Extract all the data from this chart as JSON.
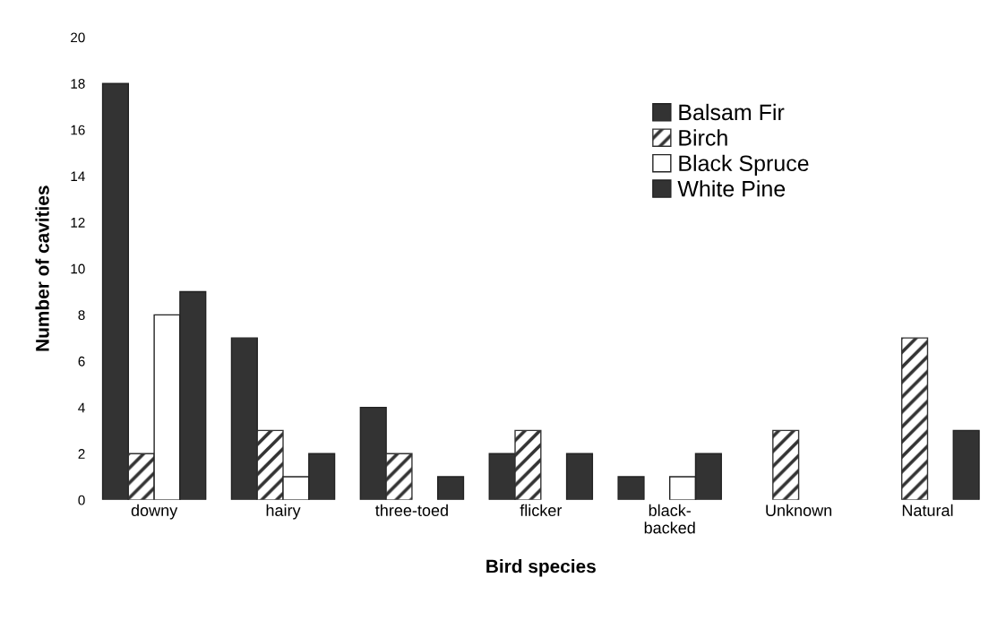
{
  "chart_data": {
    "type": "bar",
    "xlabel": "Bird species",
    "ylabel": "Number of cavities",
    "categories": [
      "downy",
      "hairy",
      "three-toed",
      "flicker",
      "black-\nbacked",
      "Unknown",
      "Natural"
    ],
    "series": [
      {
        "name": "Balsam Fir",
        "color": "#333333",
        "values": [
          18,
          7,
          4,
          2,
          1,
          0,
          0
        ]
      },
      {
        "name": "Birch",
        "color": "#333333",
        "values": [
          2,
          3,
          2,
          3,
          0,
          3,
          7
        ]
      },
      {
        "name": "Black Spruce",
        "color": "#ffffff",
        "values": [
          8,
          1,
          0,
          0,
          1,
          0,
          0
        ]
      },
      {
        "name": "White Pine",
        "color": "#333333",
        "values": [
          9,
          2,
          1,
          2,
          2,
          0,
          3
        ]
      }
    ],
    "ylim": [
      0,
      20
    ],
    "yticks": [
      0,
      2,
      4,
      6,
      8,
      10,
      12,
      14,
      16,
      18,
      20
    ],
    "grid": false,
    "legend": "top right"
  }
}
